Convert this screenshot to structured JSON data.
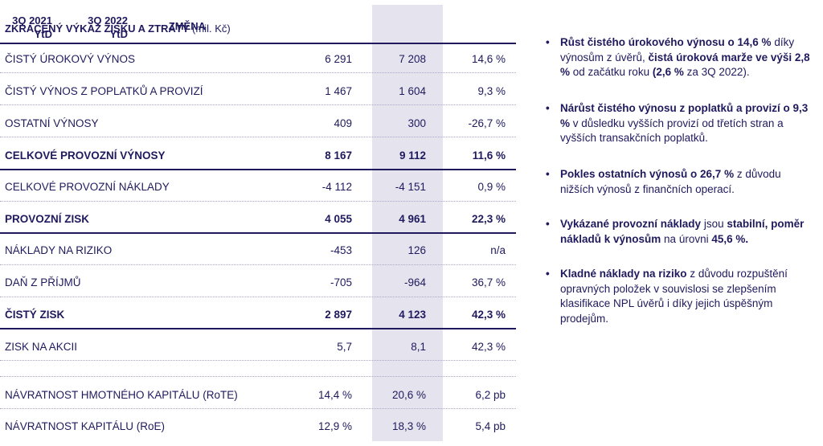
{
  "table": {
    "title": "ZKRÁCENÝ VÝKAZ ZISKU A ZTRÁTY",
    "unit": " (mil. Kč)",
    "columns": [
      {
        "line1": "3Q 2021",
        "line2": "YtD"
      },
      {
        "line1": "3Q 2022",
        "line2": "YtD"
      },
      {
        "line1": "ZMĚNA",
        "line2": ""
      }
    ],
    "rows": [
      {
        "label": "ČISTÝ ÚROKOVÝ VÝNOS",
        "v2021": "6 291",
        "v2022": "7 208",
        "change": "14,6 %",
        "bold": false
      },
      {
        "label": "ČISTÝ VÝNOS Z POPLATKŮ A PROVIZÍ",
        "v2021": "1 467",
        "v2022": "1 604",
        "change": "9,3 %",
        "bold": false
      },
      {
        "label": "OSTATNÍ VÝNOSY",
        "v2021": "409",
        "v2022": "300",
        "change": "-26,7 %",
        "bold": false
      },
      {
        "label": "CELKOVÉ PROVOZNÍ VÝNOSY",
        "v2021": "8 167",
        "v2022": "9 112",
        "change": "11,6 %",
        "bold": true
      },
      {
        "label": "CELKOVÉ PROVOZNÍ NÁKLADY",
        "v2021": "-4 112",
        "v2022": "-4 151",
        "change": "0,9 %",
        "bold": false
      },
      {
        "label": "PROVOZNÍ ZISK",
        "v2021": "4 055",
        "v2022": "4 961",
        "change": "22,3 %",
        "bold": true
      },
      {
        "label": "NÁKLADY NA RIZIKO",
        "v2021": "-453",
        "v2022": "126",
        "change": "n/a",
        "bold": false
      },
      {
        "label": "DAŇ Z PŘÍJMŮ",
        "v2021": "-705",
        "v2022": "-964",
        "change": "36,7 %",
        "bold": false
      },
      {
        "label": "ČISTÝ ZISK",
        "v2021": "2 897",
        "v2022": "4 123",
        "change": "42,3 %",
        "bold": true
      },
      {
        "label": "ZISK NA AKCII",
        "v2021": "5,7",
        "v2022": "8,1",
        "change": "42,3 %",
        "bold": false
      },
      {
        "label": "NÁVRATNOST HMOTNÉHO KAPITÁLU (RoTE)",
        "v2021": "14,4 %",
        "v2022": "20,6 %",
        "change": "6,2 pb",
        "bold": false
      },
      {
        "label": "NÁVRATNOST KAPITÁLU (RoE)",
        "v2021": "12,9 %",
        "v2022": "18,3 %",
        "change": "5,4 pb",
        "bold": false
      }
    ]
  },
  "notes": [
    [
      {
        "t": "Růst čistého úrokového výnosu o 14,6 %",
        "b": true
      },
      {
        "t": " díky výnosům z úvěrů, ",
        "b": false
      },
      {
        "t": "čistá úroková marže ve výši 2,8 %",
        "b": true
      },
      {
        "t": " od začátku roku ",
        "b": false
      },
      {
        "t": "(2,6 %",
        "b": true
      },
      {
        "t": " za 3Q 2022).",
        "b": false
      }
    ],
    [
      {
        "t": "Nárůst čistého výnosu z poplatků a provizí o 9,3 %",
        "b": true
      },
      {
        "t": " v důsledku vyšších provizí od třetích stran a vyšších transakčních poplatků.",
        "b": false
      }
    ],
    [
      {
        "t": "Pokles ostatních výnosů o 26,7 %",
        "b": true
      },
      {
        "t": " z důvodu nižších výnosů z finančních operací.",
        "b": false
      }
    ],
    [
      {
        "t": "Vykázané provozní náklady",
        "b": true
      },
      {
        "t": " jsou ",
        "b": false
      },
      {
        "t": "stabilní, poměr nákladů k výnosům",
        "b": true
      },
      {
        "t": " na úrovni ",
        "b": false
      },
      {
        "t": "45,6 %.",
        "b": true
      }
    ],
    [
      {
        "t": "Kladné náklady na riziko",
        "b": true
      },
      {
        "t": " z důvodu rozpuštění opravných položek v souvislosi se zlepšením klasifikace NPL úvěrů i díky jejich úspěšným prodejům.",
        "b": false
      }
    ]
  ],
  "bullet": "•"
}
